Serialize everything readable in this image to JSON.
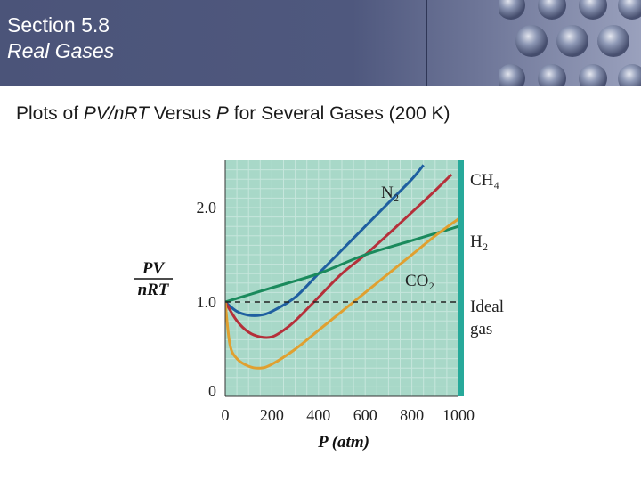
{
  "header": {
    "section": "Section 5.8",
    "subtitle": "Real Gases"
  },
  "caption": {
    "part1": "Plots of ",
    "part2": "PV/nRT",
    "part3": " Versus ",
    "part4": "P",
    "part5": " for Several Gases (200 K)"
  },
  "chart_data": {
    "type": "line",
    "title": "",
    "xlabel": "P (atm)",
    "ylabel": "PV/nRT",
    "xlim": [
      0,
      1000
    ],
    "ylim": [
      0,
      2.5
    ],
    "x_ticks": [
      "0",
      "200",
      "400",
      "600",
      "800",
      "1000"
    ],
    "y_ticks": [
      {
        "value": 0,
        "label": "0"
      },
      {
        "value": 1.0,
        "label": "1.0"
      },
      {
        "value": 2.0,
        "label": "2.0"
      }
    ],
    "background_color": "#a8d8c8",
    "series": [
      {
        "name": "CH4",
        "label_sub": "CH₄",
        "color": "#1f5fa0",
        "points": [
          [
            0,
            1.0
          ],
          [
            50,
            0.9
          ],
          [
            100,
            0.86
          ],
          [
            150,
            0.86
          ],
          [
            200,
            0.9
          ],
          [
            300,
            1.05
          ],
          [
            400,
            1.3
          ],
          [
            500,
            1.55
          ],
          [
            600,
            1.8
          ],
          [
            700,
            2.05
          ],
          [
            800,
            2.3
          ],
          [
            850,
            2.45
          ]
        ]
      },
      {
        "name": "N2",
        "label_sub": "N₂",
        "color": "#b5303a",
        "points": [
          [
            0,
            1.0
          ],
          [
            50,
            0.8
          ],
          [
            100,
            0.68
          ],
          [
            150,
            0.63
          ],
          [
            200,
            0.63
          ],
          [
            250,
            0.7
          ],
          [
            300,
            0.8
          ],
          [
            400,
            1.05
          ],
          [
            500,
            1.3
          ],
          [
            600,
            1.5
          ],
          [
            700,
            1.72
          ],
          [
            800,
            1.95
          ],
          [
            900,
            2.18
          ],
          [
            970,
            2.35
          ]
        ]
      },
      {
        "name": "H2",
        "label_sub": "H₂",
        "color": "#1a8a5c",
        "points": [
          [
            0,
            1.0
          ],
          [
            200,
            1.15
          ],
          [
            400,
            1.3
          ],
          [
            600,
            1.5
          ],
          [
            800,
            1.65
          ],
          [
            1000,
            1.8
          ]
        ]
      },
      {
        "name": "CO2",
        "label_sub": "CO₂",
        "color": "#e0a030",
        "points": [
          [
            0,
            1.0
          ],
          [
            20,
            0.55
          ],
          [
            50,
            0.4
          ],
          [
            100,
            0.32
          ],
          [
            150,
            0.3
          ],
          [
            200,
            0.34
          ],
          [
            300,
            0.5
          ],
          [
            400,
            0.7
          ],
          [
            500,
            0.9
          ],
          [
            600,
            1.1
          ],
          [
            700,
            1.3
          ],
          [
            800,
            1.5
          ],
          [
            900,
            1.7
          ],
          [
            1000,
            1.88
          ]
        ]
      },
      {
        "name": "Ideal gas",
        "color": "#222222",
        "dashed": true,
        "points": [
          [
            0,
            1.0
          ],
          [
            1000,
            1.0
          ]
        ]
      }
    ],
    "labels": {
      "ch4": "CH₄",
      "n2": "N₂",
      "h2": "H₂",
      "co2": "CO₂",
      "ideal": "Ideal",
      "gas": "gas"
    },
    "grid": true,
    "legend": "none (curve labels at right)"
  }
}
